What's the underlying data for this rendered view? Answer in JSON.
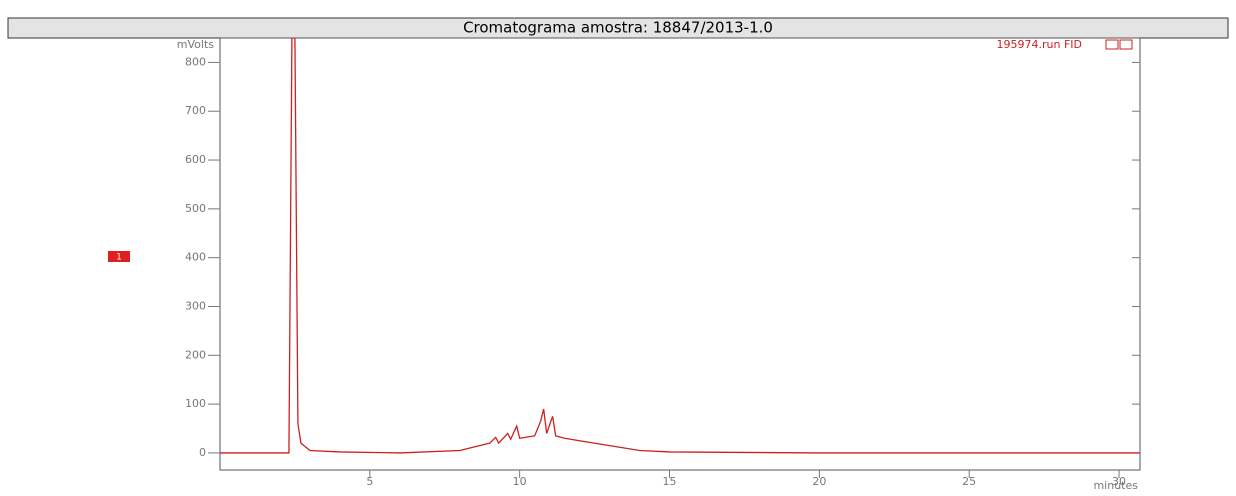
{
  "chart_data": {
    "type": "line",
    "title": "Cromatograma amostra: 18847/2013-1.0",
    "ylabel": "mVolts",
    "xlabel": "minutes",
    "marker_label": "1",
    "series": [
      {
        "name": "195974.run FID",
        "color": "#cc2020",
        "x": [
          0,
          2.3,
          2.4,
          2.5,
          2.6,
          2.7,
          3,
          4,
          6,
          8,
          9,
          9.2,
          9.3,
          9.6,
          9.7,
          9.9,
          10,
          10.5,
          10.7,
          10.8,
          10.9,
          11.1,
          11.2,
          11.5,
          12,
          13,
          14,
          15,
          20,
          30.7
        ],
        "values": [
          0,
          0,
          850,
          850,
          60,
          20,
          5,
          2,
          0,
          5,
          20,
          32,
          20,
          40,
          28,
          55,
          30,
          35,
          65,
          90,
          40,
          75,
          35,
          30,
          25,
          15,
          5,
          2,
          0,
          0
        ]
      }
    ],
    "xlim": [
      0,
      30.7
    ],
    "ylim": [
      -35,
      850
    ],
    "xticks": [
      5,
      10,
      15,
      20,
      25,
      30
    ],
    "yticks": [
      0,
      100,
      200,
      300,
      400,
      500,
      600,
      700,
      800
    ]
  }
}
